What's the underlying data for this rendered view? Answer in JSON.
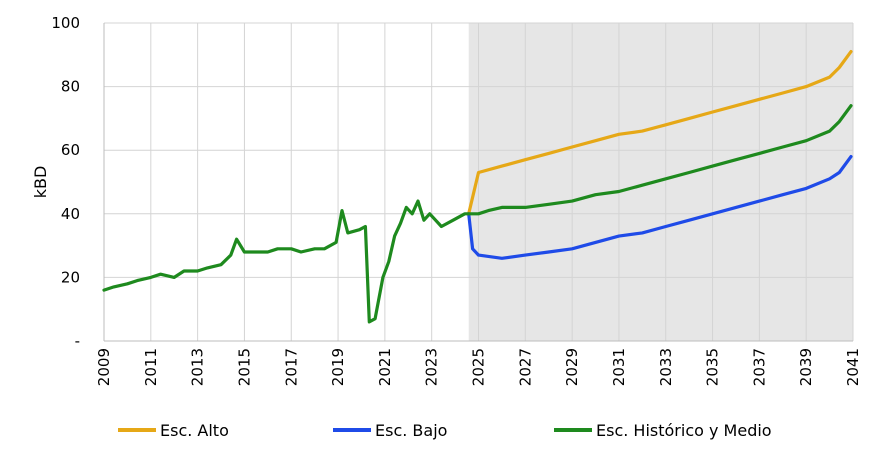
{
  "chart_data": {
    "type": "line",
    "title": "",
    "ylabel": "kBD",
    "xlabel": "",
    "ylim": [
      0,
      100
    ],
    "xlim": [
      "2009-01",
      "2041-01"
    ],
    "y_ticks": [
      {
        "value": 0,
        "label": "-"
      },
      {
        "value": 20,
        "label": "20"
      },
      {
        "value": 40,
        "label": "40"
      },
      {
        "value": 60,
        "label": "60"
      },
      {
        "value": 80,
        "label": "80"
      },
      {
        "value": 100,
        "label": "100"
      }
    ],
    "x_ticks": [
      "2009",
      "2011",
      "2013",
      "2015",
      "2017",
      "2019",
      "2021",
      "2023",
      "2025",
      "2027",
      "2029",
      "2031",
      "2033",
      "2035",
      "2037",
      "2039",
      "2041"
    ],
    "grid": true,
    "legend_position": "bottom",
    "forecast_region": {
      "start": "2024-08",
      "end": "2041-01",
      "color": "#e6e6e6"
    },
    "series": [
      {
        "name": "Esc. Alto",
        "color": "#e6a817",
        "x": [
          "2024-08",
          "2025-01",
          "2026-01",
          "2027-01",
          "2028-01",
          "2029-01",
          "2030-01",
          "2031-01",
          "2032-01",
          "2033-01",
          "2034-01",
          "2035-01",
          "2036-01",
          "2037-01",
          "2038-01",
          "2039-01",
          "2040-01",
          "2040-06",
          "2040-12"
        ],
        "y": [
          40,
          53,
          55,
          57,
          59,
          61,
          63,
          65,
          66,
          68,
          70,
          72,
          74,
          76,
          78,
          80,
          83,
          86,
          91
        ]
      },
      {
        "name": "Esc. Bajo",
        "color": "#1f4be8",
        "x": [
          "2024-08",
          "2024-10",
          "2025-01",
          "2026-01",
          "2027-01",
          "2028-01",
          "2029-01",
          "2030-01",
          "2031-01",
          "2032-01",
          "2033-01",
          "2034-01",
          "2035-01",
          "2036-01",
          "2037-01",
          "2038-01",
          "2039-01",
          "2040-01",
          "2040-06",
          "2040-12"
        ],
        "y": [
          40,
          29,
          27,
          26,
          27,
          28,
          29,
          31,
          33,
          34,
          36,
          38,
          40,
          42,
          44,
          46,
          48,
          51,
          53,
          58
        ]
      },
      {
        "name": "Esc. Histórico y Medio",
        "color": "#1e8a1e",
        "x": [
          "2009-01",
          "2009-06",
          "2010-01",
          "2010-06",
          "2011-01",
          "2011-06",
          "2012-01",
          "2012-06",
          "2013-01",
          "2013-06",
          "2014-01",
          "2014-06",
          "2014-09",
          "2015-01",
          "2015-06",
          "2016-01",
          "2016-06",
          "2017-01",
          "2017-06",
          "2018-01",
          "2018-06",
          "2018-12",
          "2019-03",
          "2019-06",
          "2019-12",
          "2020-03",
          "2020-05",
          "2020-08",
          "2020-12",
          "2021-03",
          "2021-06",
          "2021-09",
          "2021-12",
          "2022-03",
          "2022-06",
          "2022-09",
          "2022-12",
          "2023-03",
          "2023-06",
          "2023-12",
          "2024-06",
          "2025-01",
          "2025-06",
          "2026-01",
          "2027-01",
          "2028-01",
          "2029-01",
          "2030-01",
          "2031-01",
          "2032-01",
          "2033-01",
          "2034-01",
          "2035-01",
          "2036-01",
          "2037-01",
          "2038-01",
          "2039-01",
          "2040-01",
          "2040-06",
          "2040-12"
        ],
        "y": [
          16,
          17,
          18,
          19,
          20,
          21,
          20,
          22,
          22,
          23,
          24,
          27,
          32,
          28,
          28,
          28,
          29,
          29,
          28,
          29,
          29,
          31,
          41,
          34,
          35,
          36,
          6,
          7,
          20,
          25,
          33,
          37,
          42,
          40,
          44,
          38,
          40,
          38,
          36,
          38,
          40,
          40,
          41,
          42,
          42,
          43,
          44,
          46,
          47,
          49,
          51,
          53,
          55,
          57,
          59,
          61,
          63,
          66,
          69,
          74
        ]
      }
    ]
  }
}
